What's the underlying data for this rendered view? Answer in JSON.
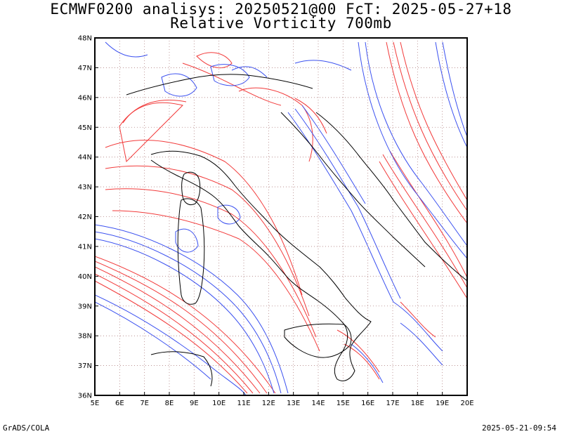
{
  "title": {
    "line1": "ECMWF0200 analisys: 20250521@00 FcT: 2025-05-27+18",
    "line2": "Relative Vorticity 700mb"
  },
  "footer": {
    "left": "GrADS/COLA",
    "right": "2025-05-21-09:54"
  },
  "map": {
    "lat_labels": [
      "36N",
      "37N",
      "38N",
      "39N",
      "40N",
      "41N",
      "42N",
      "43N",
      "44N",
      "45N",
      "46N",
      "47N",
      "48N"
    ],
    "lon_labels": [
      "5E",
      "6E",
      "7E",
      "8E",
      "9E",
      "10E",
      "11E",
      "12E",
      "13E",
      "14E",
      "15E",
      "16E",
      "17E",
      "18E",
      "19E",
      "20E"
    ],
    "colors": {
      "positive": "#f23a3a",
      "negative": "#3a50f0",
      "grid": "#b08080",
      "coast": "#000000"
    }
  }
}
